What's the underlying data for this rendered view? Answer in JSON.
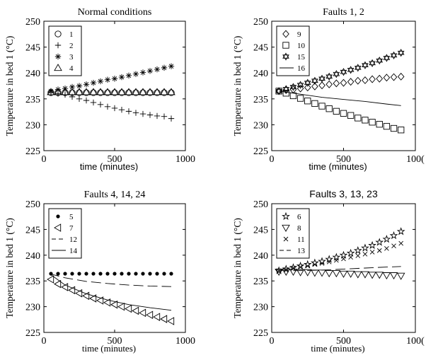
{
  "chart_data": [
    {
      "type": "scatter",
      "title": "Normal conditions",
      "xlabel": "time (minutes)",
      "ylabel": "Temperature in bed 1 (°C)",
      "xlim": [
        0,
        1000
      ],
      "ylim": [
        225,
        250
      ],
      "xticks": [
        "0",
        "500",
        "1000"
      ],
      "yticks": [
        "225",
        "230",
        "235",
        "240",
        "245",
        "250"
      ],
      "legend_position": "top-left",
      "series": [
        {
          "name": "1",
          "marker": "circle",
          "x": [
            50,
            100,
            150,
            200,
            250,
            300,
            350,
            400,
            450,
            500,
            550,
            600,
            650,
            700,
            750,
            800,
            850,
            900
          ],
          "y": [
            236.2,
            236.2,
            236.2,
            236.2,
            236.2,
            236.2,
            236.2,
            236.2,
            236.2,
            236.2,
            236.2,
            236.2,
            236.2,
            236.2,
            236.2,
            236.2,
            236.2,
            236.2
          ]
        },
        {
          "name": "2",
          "marker": "plus",
          "x": [
            50,
            100,
            150,
            200,
            250,
            300,
            350,
            400,
            450,
            500,
            550,
            600,
            650,
            700,
            750,
            800,
            850,
            900
          ],
          "y": [
            236.2,
            236.0,
            235.8,
            235.4,
            235.0,
            234.7,
            234.3,
            233.9,
            233.5,
            233.2,
            232.9,
            232.6,
            232.3,
            232.1,
            231.9,
            231.7,
            231.6,
            231.2
          ]
        },
        {
          "name": "3",
          "marker": "asterisk",
          "x": [
            50,
            100,
            150,
            200,
            250,
            300,
            350,
            400,
            450,
            500,
            550,
            600,
            650,
            700,
            750,
            800,
            850,
            900
          ],
          "y": [
            236.5,
            236.8,
            237.0,
            237.3,
            237.5,
            237.8,
            238.1,
            238.4,
            238.7,
            238.9,
            239.2,
            239.5,
            239.8,
            240.1,
            240.4,
            240.7,
            241.0,
            241.3
          ]
        },
        {
          "name": "4",
          "marker": "triangle-up",
          "x": [
            50,
            100,
            150,
            200,
            250,
            300,
            350,
            400,
            450,
            500,
            550,
            600,
            650,
            700,
            750,
            800,
            850,
            900
          ],
          "y": [
            236.3,
            236.3,
            236.3,
            236.3,
            236.3,
            236.3,
            236.3,
            236.3,
            236.3,
            236.3,
            236.3,
            236.3,
            236.3,
            236.3,
            236.3,
            236.3,
            236.3,
            236.3
          ]
        }
      ]
    },
    {
      "type": "scatter",
      "title": "Faults 1, 2",
      "xlabel": "time (minutes)",
      "ylabel": "Temperature in bed 1 (°C)",
      "xlim": [
        0,
        1000
      ],
      "ylim": [
        225,
        250
      ],
      "xticks": [
        "0",
        "500",
        "100("
      ],
      "yticks": [
        "225",
        "230",
        "235",
        "240",
        "245",
        "250"
      ],
      "legend_position": "top-left",
      "series": [
        {
          "name": "9",
          "marker": "diamond",
          "x": [
            50,
            100,
            150,
            200,
            250,
            300,
            350,
            400,
            450,
            500,
            550,
            600,
            650,
            700,
            750,
            800,
            850,
            900
          ],
          "y": [
            236.5,
            236.7,
            236.8,
            237.0,
            237.2,
            237.4,
            237.6,
            237.8,
            238.0,
            238.1,
            238.3,
            238.5,
            238.6,
            238.8,
            238.9,
            239.1,
            239.2,
            239.3
          ]
        },
        {
          "name": "10",
          "marker": "square",
          "x": [
            50,
            100,
            150,
            200,
            250,
            300,
            350,
            400,
            450,
            500,
            550,
            600,
            650,
            700,
            750,
            800,
            850,
            900
          ],
          "y": [
            236.5,
            236.1,
            235.6,
            235.1,
            234.6,
            234.1,
            233.6,
            233.1,
            232.6,
            232.2,
            231.8,
            231.3,
            230.9,
            230.5,
            230.1,
            229.7,
            229.3,
            229.0
          ]
        },
        {
          "name": "15",
          "marker": "star-of-david",
          "x": [
            50,
            100,
            150,
            200,
            250,
            300,
            350,
            400,
            450,
            500,
            550,
            600,
            650,
            700,
            750,
            800,
            850,
            900
          ],
          "y": [
            236.5,
            236.9,
            237.3,
            237.7,
            238.1,
            238.5,
            238.9,
            239.3,
            239.8,
            240.2,
            240.6,
            241.0,
            241.5,
            241.9,
            242.4,
            242.9,
            243.4,
            243.9
          ]
        },
        {
          "name": "16",
          "marker": "line",
          "x": [
            50,
            200,
            350,
            500,
            650,
            800,
            900
          ],
          "y": [
            236.5,
            235.9,
            235.3,
            234.9,
            234.5,
            234.0,
            233.7
          ]
        }
      ]
    },
    {
      "type": "scatter",
      "title": "Faults 4, 14, 24",
      "xlabel": "time (minutes)",
      "ylabel": "Temperature in bed 1 (°C)",
      "xlim": [
        0,
        1000
      ],
      "ylim": [
        225,
        250
      ],
      "xticks": [
        "0",
        "500",
        "1000"
      ],
      "yticks": [
        "225",
        "230",
        "235",
        "240",
        "245",
        "250"
      ],
      "legend_position": "top-left",
      "series": [
        {
          "name": "5",
          "marker": "dot",
          "x": [
            50,
            100,
            150,
            200,
            250,
            300,
            350,
            400,
            450,
            500,
            550,
            600,
            650,
            700,
            750,
            800,
            850,
            900
          ],
          "y": [
            236.4,
            236.4,
            236.4,
            236.4,
            236.4,
            236.4,
            236.4,
            236.4,
            236.4,
            236.4,
            236.4,
            236.4,
            236.4,
            236.4,
            236.4,
            236.4,
            236.4,
            236.4
          ]
        },
        {
          "name": "7",
          "marker": "triangle-left",
          "x": [
            50,
            100,
            150,
            200,
            250,
            300,
            350,
            400,
            450,
            500,
            550,
            600,
            650,
            700,
            750,
            800,
            850,
            900
          ],
          "y": [
            235.3,
            234.4,
            233.8,
            233.2,
            232.6,
            232.1,
            231.6,
            231.2,
            230.8,
            230.4,
            230.0,
            229.6,
            229.2,
            228.8,
            228.4,
            228.0,
            227.6,
            227.2
          ]
        },
        {
          "name": "12",
          "marker": "dash",
          "x": [
            40,
            150,
            300,
            450,
            600,
            750,
            900
          ],
          "y": [
            236.4,
            235.6,
            234.9,
            234.5,
            234.2,
            234.0,
            233.9
          ]
        },
        {
          "name": "14",
          "marker": "line",
          "x": [
            40,
            150,
            300,
            450,
            600,
            750,
            900
          ],
          "y": [
            236.4,
            234.2,
            232.5,
            231.3,
            230.4,
            229.8,
            229.3
          ]
        }
      ]
    },
    {
      "type": "scatter",
      "title": "Faults 3, 13, 23",
      "xlabel": "time (minutes)",
      "ylabel": "Temperature in bed 1 (°C)",
      "xlim": [
        0,
        1000
      ],
      "ylim": [
        225,
        250
      ],
      "xticks": [
        "0",
        "500",
        "100("
      ],
      "yticks": [
        "225",
        "230",
        "235",
        "240",
        "245",
        "250"
      ],
      "legend_position": "top-left",
      "series": [
        {
          "name": "6",
          "marker": "star",
          "x": [
            50,
            100,
            150,
            200,
            250,
            300,
            350,
            400,
            450,
            500,
            550,
            600,
            650,
            700,
            750,
            800,
            850,
            900
          ],
          "y": [
            237.0,
            237.3,
            237.6,
            237.9,
            238.2,
            238.5,
            238.8,
            239.2,
            239.6,
            240.0,
            240.4,
            240.9,
            241.4,
            241.9,
            242.5,
            243.1,
            243.8,
            244.6
          ]
        },
        {
          "name": "8",
          "marker": "triangle-down",
          "x": [
            50,
            100,
            150,
            200,
            250,
            300,
            350,
            400,
            450,
            500,
            550,
            600,
            650,
            700,
            750,
            800,
            850,
            900
          ],
          "y": [
            236.8,
            236.8,
            236.8,
            236.7,
            236.7,
            236.6,
            236.6,
            236.5,
            236.5,
            236.4,
            236.4,
            236.3,
            236.3,
            236.2,
            236.2,
            236.1,
            236.1,
            236.0
          ]
        },
        {
          "name": "11",
          "marker": "x",
          "x": [
            50,
            100,
            150,
            200,
            250,
            300,
            350,
            400,
            450,
            500,
            550,
            600,
            650,
            700,
            750,
            800,
            850,
            900
          ],
          "y": [
            237.0,
            237.2,
            237.5,
            237.7,
            237.9,
            238.2,
            238.4,
            238.7,
            239.0,
            239.3,
            239.6,
            239.9,
            240.2,
            240.6,
            240.9,
            241.3,
            241.8,
            242.3
          ]
        },
        {
          "name": "13",
          "marker": "dash",
          "x": [
            50,
            200,
            350,
            500,
            650,
            800,
            900
          ],
          "y": [
            237.0,
            237.0,
            237.1,
            237.3,
            237.5,
            237.7,
            237.8
          ]
        }
      ]
    }
  ]
}
